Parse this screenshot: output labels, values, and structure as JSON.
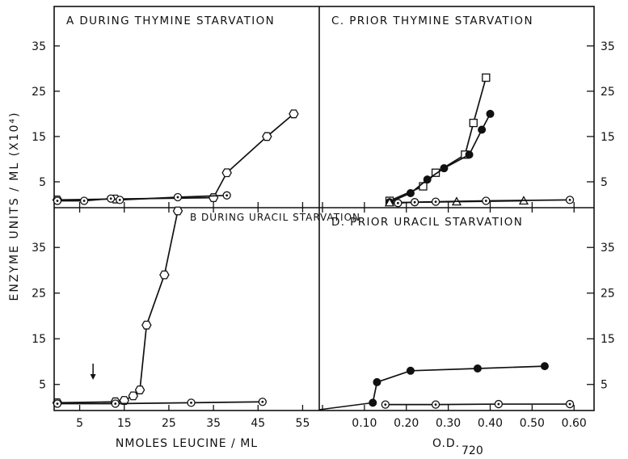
{
  "y_axis_label": "ENZYME UNITS / ML  (X10⁴)",
  "chart_data": [
    {
      "type": "scatter",
      "panel": "A",
      "title": "A  DURING  THYMINE  STARVATION",
      "xlabel": "NMOLES LEUCINE / ML",
      "ylabel": "ENZYME UNITS / ML (X10⁴)",
      "x_ticks": [
        5,
        15,
        25,
        35,
        45,
        55
      ],
      "y_ticks": [
        5,
        15,
        25,
        35
      ],
      "xlim": [
        0,
        58
      ],
      "ylim": [
        0,
        43
      ],
      "series": [
        {
          "marker": "open-hexagon",
          "x": [
            0,
            13,
            35,
            38,
            47,
            53
          ],
          "y": [
            1,
            1.2,
            1.5,
            7,
            15,
            20
          ]
        },
        {
          "marker": "dotted-circle",
          "x": [
            0,
            6,
            12,
            14,
            27,
            38
          ],
          "y": [
            0.8,
            0.8,
            1.3,
            1,
            1.6,
            2
          ]
        }
      ]
    },
    {
      "type": "scatter",
      "panel": "B",
      "title": "B  DURING  URACIL STARVATION",
      "xlabel": "NMOLES LEUCINE / ML",
      "ylabel": "ENZYME UNITS / ML (X10⁴)",
      "x_ticks": [
        5,
        15,
        25,
        35,
        45,
        55
      ],
      "y_ticks": [
        5,
        15,
        25,
        35
      ],
      "xlim": [
        0,
        58
      ],
      "ylim": [
        0,
        43
      ],
      "series": [
        {
          "marker": "open-hexagon",
          "x": [
            0,
            13,
            15,
            17,
            18.5,
            20,
            24,
            27
          ],
          "y": [
            1,
            1.2,
            1.5,
            2.5,
            3.8,
            18,
            29,
            43
          ]
        },
        {
          "marker": "dotted-circle",
          "x": [
            0,
            13,
            30,
            46
          ],
          "y": [
            0.8,
            0.8,
            1,
            1.2
          ]
        }
      ],
      "annotations": [
        {
          "text": "arrow",
          "x": 8
        }
      ]
    },
    {
      "type": "line",
      "panel": "C",
      "title": "C.  PRIOR  THYMINE  STARVATION",
      "xlabel": "O.D. 720",
      "ylabel": "ENZYME UNITS / ML (X10⁴)",
      "x_ticks": [
        "",
        "0.10",
        "0.20",
        "0.30",
        "0.40",
        "0.50",
        "0.60"
      ],
      "y_ticks": [
        5,
        15,
        25,
        35
      ],
      "xlim": [
        0,
        0.64
      ],
      "ylim": [
        0,
        43
      ],
      "series": [
        {
          "marker": "open-square",
          "x": [
            0.16,
            0.24,
            0.27,
            0.34,
            0.36,
            0.39
          ],
          "y": [
            0.8,
            4,
            7,
            11,
            18,
            28
          ]
        },
        {
          "marker": "filled-circle",
          "x": [
            0.16,
            0.21,
            0.25,
            0.29,
            0.35,
            0.38,
            0.4
          ],
          "y": [
            0.5,
            2.5,
            5.5,
            8,
            11,
            16.5,
            20
          ]
        },
        {
          "marker": "open-triangle",
          "x": [
            0.16,
            0.32,
            0.48
          ],
          "y": [
            0.4,
            0.6,
            0.8
          ]
        },
        {
          "marker": "dotted-circle",
          "x": [
            0.18,
            0.22,
            0.27,
            0.39,
            0.59
          ],
          "y": [
            0.3,
            0.5,
            0.6,
            0.8,
            1
          ]
        }
      ]
    },
    {
      "type": "line",
      "panel": "D",
      "title": "D.  PRIOR  URACIL  STARVATION",
      "xlabel": "O.D. 720",
      "ylabel": "ENZYME UNITS / ML (X10⁴)",
      "x_ticks": [
        "",
        "0.10",
        "0.20",
        "0.30",
        "0.40",
        "0.50",
        "0.60"
      ],
      "y_ticks": [
        5,
        15,
        25,
        35
      ],
      "xlim": [
        0,
        0.64
      ],
      "ylim": [
        0,
        43
      ],
      "series": [
        {
          "marker": "filled-circle",
          "x": [
            0.12,
            0.13,
            0.21,
            0.37,
            0.53
          ],
          "y": [
            1,
            5.5,
            8,
            8.5,
            9
          ]
        },
        {
          "marker": "dotted-circle",
          "x": [
            0.15,
            0.27,
            0.42,
            0.59
          ],
          "y": [
            0.6,
            0.6,
            0.7,
            0.7
          ]
        }
      ]
    }
  ]
}
